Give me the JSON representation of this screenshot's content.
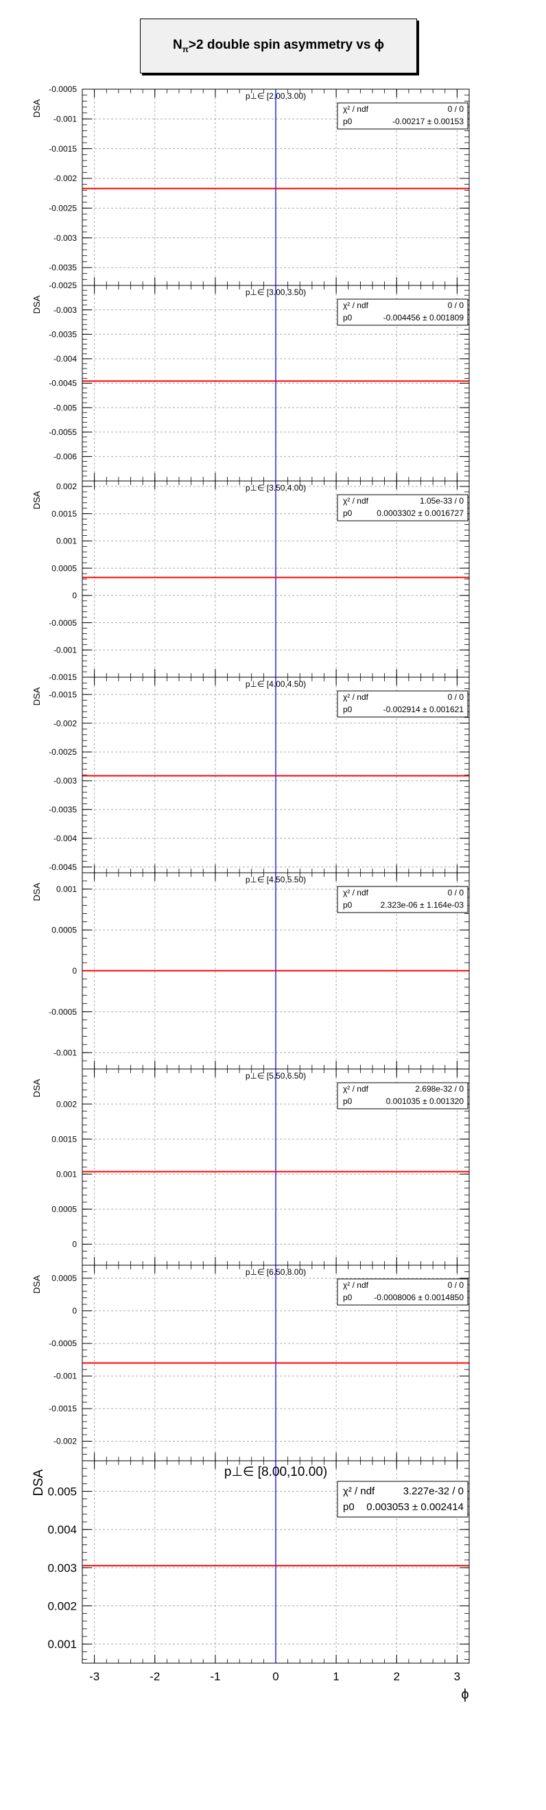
{
  "title_parts": {
    "prefix": "N",
    "sub": "π",
    "suffix": ">2 double spin asymmetry vs ϕ"
  },
  "stats_labels": {
    "chi2": "χ² / ndf",
    "p0": "p0"
  },
  "colors": {
    "fit_line": "#ff0000",
    "zero_line": "#0000ff",
    "grid": "#aaaaaa",
    "stats_bg": "#ffffff"
  },
  "chart_data": [
    {
      "type": "line",
      "panel_label": "p⊥∈ [2.00,3.00)",
      "ylabel": "DSA",
      "xlabel": "",
      "xlim": [
        -3.2,
        3.2
      ],
      "ylim": [
        -0.0038,
        -0.0005
      ],
      "yticks": [
        -0.0005,
        -0.001,
        -0.0015,
        -0.002,
        -0.0025,
        -0.003,
        -0.0035
      ],
      "ytick_labels": [
        "-0.0005",
        "-0.001",
        "-0.0015",
        "-0.002",
        "-0.0025",
        "-0.003",
        "-0.0035"
      ],
      "xticks": [
        -3,
        -2,
        -1,
        0,
        1,
        2,
        3
      ],
      "xtick_labels": [],
      "fit": {
        "chi2_ndf": "0 / 0",
        "p0": "-0.00217 ± 0.00153",
        "value": -0.00217
      }
    },
    {
      "type": "line",
      "panel_label": "p⊥∈ [3.00,3.50)",
      "ylabel": "DSA",
      "xlabel": "",
      "xlim": [
        -3.2,
        3.2
      ],
      "ylim": [
        -0.0065,
        -0.0025
      ],
      "yticks": [
        -0.0025,
        -0.003,
        -0.0035,
        -0.004,
        -0.0045,
        -0.005,
        -0.0055,
        -0.006
      ],
      "ytick_labels": [
        "-0.0025",
        "-0.003",
        "-0.0035",
        "-0.004",
        "-0.0045",
        "-0.005",
        "-0.0055",
        "-0.006"
      ],
      "xticks": [
        -3,
        -2,
        -1,
        0,
        1,
        2,
        3
      ],
      "xtick_labels": [],
      "fit": {
        "chi2_ndf": "0 / 0",
        "p0": "-0.004456 ± 0.001809",
        "value": -0.004456
      }
    },
    {
      "type": "line",
      "panel_label": "p⊥∈ [3.50,4.00)",
      "ylabel": "DSA",
      "xlabel": "",
      "xlim": [
        -3.2,
        3.2
      ],
      "ylim": [
        -0.0015,
        0.0021
      ],
      "yticks": [
        0.002,
        0.0015,
        0.001,
        0.0005,
        0,
        -0.0005,
        -0.001,
        -0.0015
      ],
      "ytick_labels": [
        "0.002",
        "0.0015",
        "0.001",
        "0.0005",
        "0",
        "-0.0005",
        "-0.001",
        "-0.0015"
      ],
      "xticks": [
        -3,
        -2,
        -1,
        0,
        1,
        2,
        3
      ],
      "xtick_labels": [],
      "fit": {
        "chi2_ndf": "1.05e-33 / 0",
        "p0": "0.0003302 ± 0.0016727",
        "value": 0.0003302
      }
    },
    {
      "type": "line",
      "panel_label": "p⊥∈ [4.00,4.50)",
      "ylabel": "DSA",
      "xlabel": "",
      "xlim": [
        -3.2,
        3.2
      ],
      "ylim": [
        -0.0046,
        -0.0012
      ],
      "yticks": [
        -0.0015,
        -0.002,
        -0.0025,
        -0.003,
        -0.0035,
        -0.004,
        -0.0045
      ],
      "ytick_labels": [
        "-0.0015",
        "-0.002",
        "-0.0025",
        "-0.003",
        "-0.0035",
        "-0.004",
        "-0.0045"
      ],
      "xticks": [
        -3,
        -2,
        -1,
        0,
        1,
        2,
        3
      ],
      "xtick_labels": [],
      "fit": {
        "chi2_ndf": "0 / 0",
        "p0": "-0.002914 ± 0.001621",
        "value": -0.002914
      }
    },
    {
      "type": "line",
      "panel_label": "p⊥∈ [4.50,5.50)",
      "ylabel": "DSA",
      "xlabel": "",
      "xlim": [
        -3.2,
        3.2
      ],
      "ylim": [
        -0.0012,
        0.0012
      ],
      "yticks": [
        0.001,
        0.0005,
        0,
        -0.0005,
        -0.001
      ],
      "ytick_labels": [
        "0.001",
        "0.0005",
        "0",
        "-0.0005",
        "-0.001"
      ],
      "xticks": [
        -3,
        -2,
        -1,
        0,
        1,
        2,
        3
      ],
      "xtick_labels": [],
      "fit": {
        "chi2_ndf": "0 / 0",
        "p0": "2.323e-06 ± 1.164e-03",
        "value": 2.323e-06
      }
    },
    {
      "type": "line",
      "panel_label": "p⊥∈ [5.50,6.50)",
      "ylabel": "DSA",
      "xlabel": "",
      "xlim": [
        -3.2,
        3.2
      ],
      "ylim": [
        -0.0003,
        0.0025
      ],
      "yticks": [
        0.002,
        0.0015,
        0.001,
        0.0005,
        0
      ],
      "ytick_labels": [
        "0.002",
        "0.0015",
        "0.001",
        "0.0005",
        "0"
      ],
      "xticks": [
        -3,
        -2,
        -1,
        0,
        1,
        2,
        3
      ],
      "xtick_labels": [],
      "fit": {
        "chi2_ndf": "2.698e-32 / 0",
        "p0": "0.001035 ± 0.001320",
        "value": 0.001035
      }
    },
    {
      "type": "line",
      "panel_label": "p⊥∈ [6.50,8.00)",
      "ylabel": "DSA",
      "xlabel": "",
      "xlim": [
        -3.2,
        3.2
      ],
      "ylim": [
        -0.0023,
        0.0007
      ],
      "yticks": [
        0.0005,
        0,
        -0.0005,
        -0.001,
        -0.0015,
        -0.002
      ],
      "ytick_labels": [
        "0.0005",
        "0",
        "-0.0005",
        "-0.001",
        "-0.0015",
        "-0.002"
      ],
      "xticks": [
        -3,
        -2,
        -1,
        0,
        1,
        2,
        3
      ],
      "xtick_labels": [],
      "fit": {
        "chi2_ndf": "0 / 0",
        "p0": "-0.0008006 ± 0.0014850",
        "value": -0.0008006
      }
    },
    {
      "type": "line",
      "panel_label": "p⊥∈ [8.00,10.00)",
      "ylabel": "DSA",
      "xlabel": "ϕ",
      "xlim": [
        -3.2,
        3.2
      ],
      "ylim": [
        0.0005,
        0.0058
      ],
      "yticks": [
        0.005,
        0.004,
        0.003,
        0.002,
        0.001
      ],
      "ytick_labels": [
        "0.005",
        "0.004",
        "0.003",
        "0.002",
        "0.001"
      ],
      "xticks": [
        -3,
        -2,
        -1,
        0,
        1,
        2,
        3
      ],
      "xtick_labels": [
        "-3",
        "-2",
        "-1",
        "0",
        "1",
        "2",
        "3"
      ],
      "fit": {
        "chi2_ndf": "3.227e-32 / 0",
        "p0": "0.003053 ± 0.002414",
        "value": 0.003053
      }
    }
  ]
}
